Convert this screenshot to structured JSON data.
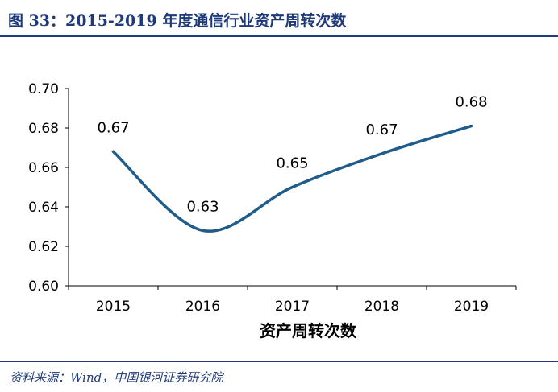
{
  "header": {
    "title": "图 33：2015-2019 年度通信行业资产周转次数"
  },
  "chart_data": {
    "type": "line",
    "categories": [
      "2015",
      "2016",
      "2017",
      "2018",
      "2019"
    ],
    "series": [
      {
        "name": "资产周转次数",
        "values": [
          0.668,
          0.628,
          0.65,
          0.667,
          0.681
        ],
        "labels": [
          "0.67",
          "0.63",
          "0.65",
          "0.67",
          "0.68"
        ]
      }
    ],
    "title": "",
    "xlabel": "资产周转次数",
    "ylabel": "",
    "ylim": [
      0.6,
      0.7
    ],
    "yticks": [
      "0.60",
      "0.62",
      "0.64",
      "0.66",
      "0.68",
      "0.70"
    ],
    "grid": false,
    "smooth": true,
    "line_color": "#1f5c8a"
  },
  "footer": {
    "source": "资料来源：Wind，中国银河证券研究院"
  }
}
